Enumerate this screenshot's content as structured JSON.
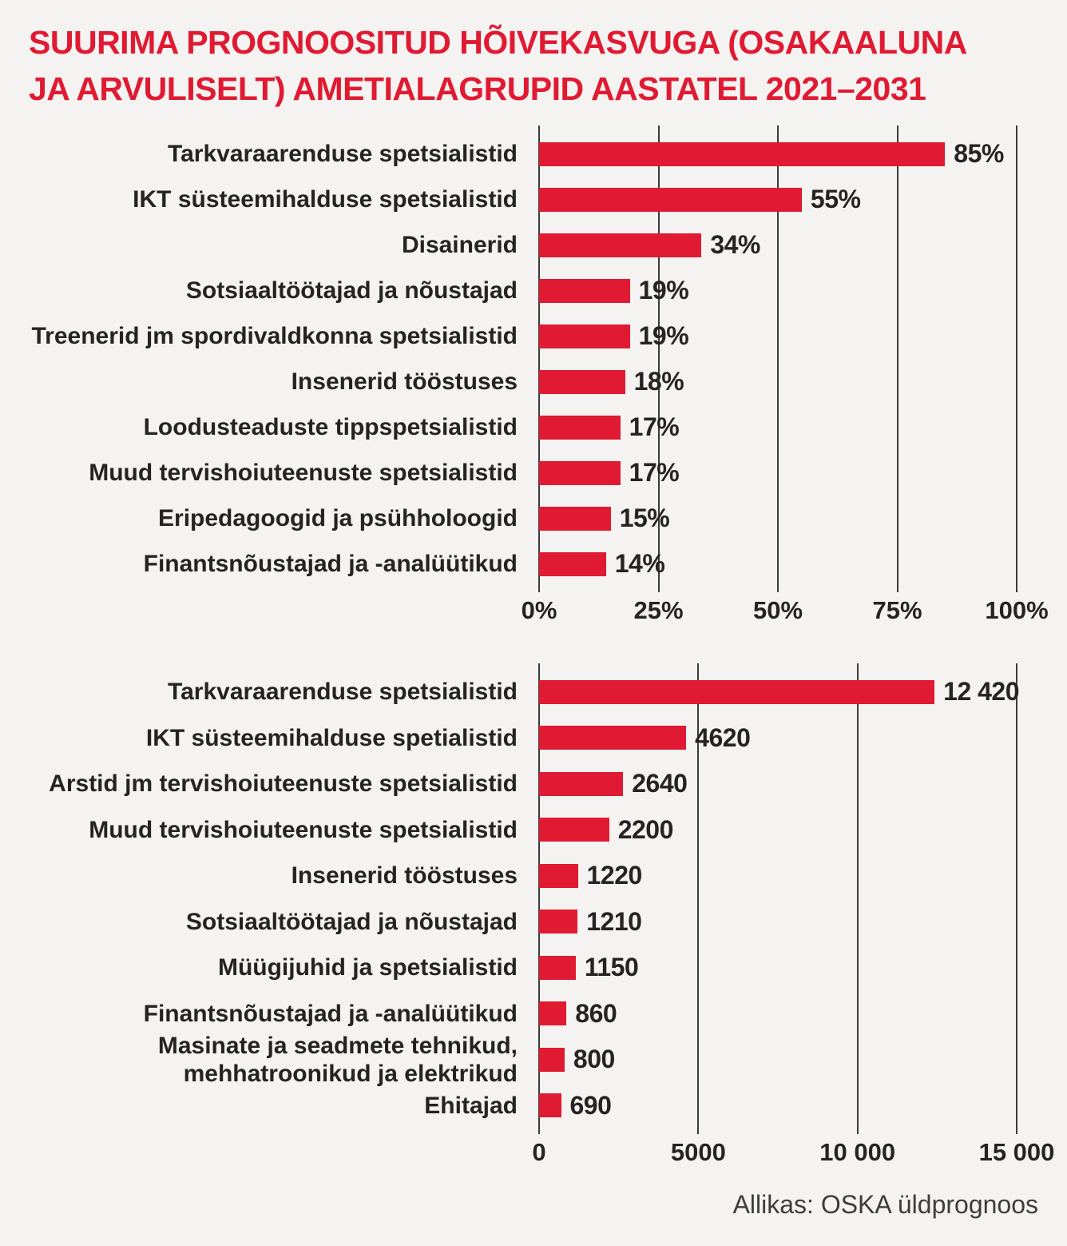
{
  "page": {
    "background": "#F4F3F1",
    "accent_red": "#E01A32",
    "text_dark": "#272324",
    "gridline_color": "#3b3b3b",
    "title_line1": "SUURIMA PROGNOOSITUD HÕIVEKASVUGA (OSAKAALUNA",
    "title_line2": "JA ARVULISELT) AMETIALAGRUPID AASTATEL 2021–2031",
    "source_note": "Allikas: OSKA üldprognoos"
  },
  "chart_data": [
    {
      "type": "bar",
      "orientation": "horizontal",
      "title": "Hõivekasv osakaaluna",
      "categories": [
        "Tarkvaraarenduse spetsialistid",
        "IKT süsteemihalduse spetsialistid",
        "Disainerid",
        "Sotsiaaltöötajad ja nõustajad",
        "Treenerid jm spordivaldkonna spetsialistid",
        "Insenerid tööstuses",
        "Loodusteaduste tippspetsialistid",
        "Muud tervishoiuteenuste spetsialistid",
        "Eripedagoogid ja psühholoogid",
        "Finantsnõustajad ja -analüütikud"
      ],
      "values": [
        85,
        55,
        34,
        19,
        19,
        18,
        17,
        17,
        15,
        14
      ],
      "value_labels": [
        "85%",
        "55%",
        "34%",
        "19%",
        "19%",
        "18%",
        "17%",
        "17%",
        "15%",
        "14%"
      ],
      "xlim": [
        0,
        100
      ],
      "xticks": [
        0,
        25,
        50,
        75,
        100
      ],
      "xtick_labels": [
        "0%",
        "25%",
        "50%",
        "75%",
        "100%"
      ],
      "grid": true,
      "bar_color": "#E01A32"
    },
    {
      "type": "bar",
      "orientation": "horizontal",
      "title": "Hõivekasv arvuliselt",
      "categories": [
        "Tarkvaraarenduse spetsialistid",
        "IKT süsteemihalduse spetialistid",
        "Arstid jm tervishoiuteenuste spetsialistid",
        "Muud tervishoiuteenuste spetsialistid",
        "Insenerid tööstuses",
        "Sotsiaaltöötajad ja nõustajad",
        "Müügijuhid ja spetsialistid",
        "Finantsnõustajad ja -analüütikud",
        "Masinate ja seadmete tehnikud,\nmehhatroonikud ja elektrikud",
        "Ehitajad"
      ],
      "values": [
        12420,
        4620,
        2640,
        2200,
        1220,
        1210,
        1150,
        860,
        800,
        690
      ],
      "value_labels": [
        "12 420",
        "4620",
        "2640",
        "2200",
        "1220",
        "1210",
        "1150",
        "860",
        "800",
        "690"
      ],
      "xlim": [
        0,
        15000
      ],
      "xticks": [
        0,
        5000,
        10000,
        15000
      ],
      "xtick_labels": [
        "0",
        "5000",
        "10 000",
        "15 000"
      ],
      "grid": true,
      "bar_color": "#E01A32"
    }
  ]
}
